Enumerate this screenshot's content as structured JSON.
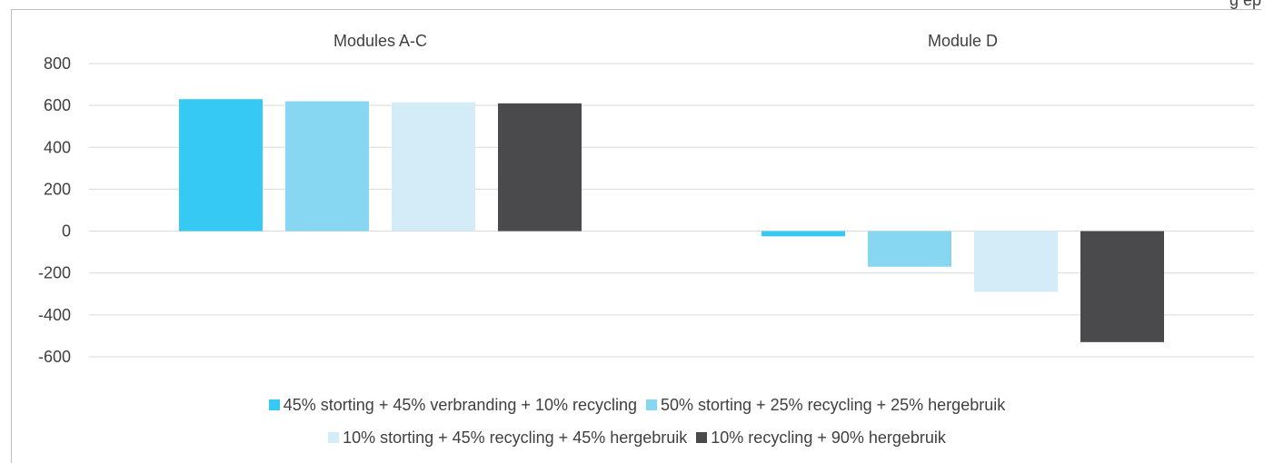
{
  "header": {
    "corner_text": "g ep"
  },
  "chart_data": {
    "type": "bar",
    "categories": [
      "Modules A-C",
      "Module D"
    ],
    "series": [
      {
        "name": "45% storting + 45% verbranding + 10% recycling",
        "color": "#35c9f4",
        "values": [
          630,
          -25
        ]
      },
      {
        "name": "50% storting + 25% recycling + 25% hergebruik",
        "color": "#87d7f3",
        "values": [
          620,
          -170
        ]
      },
      {
        "name": "10% storting + 45% recycling + 45% hergebruik",
        "color": "#d3ecf8",
        "values": [
          615,
          -290
        ]
      },
      {
        "name": "10% recycling + 90% hergebruik",
        "color": "#4a4a4c",
        "values": [
          610,
          -530
        ]
      }
    ],
    "ylim": [
      -600,
      800
    ],
    "yticks": [
      "800",
      "600",
      "400",
      "200",
      "0",
      "-200",
      "-400",
      "-600"
    ],
    "grid": true,
    "legend_position": "bottom",
    "title": "",
    "xlabel": "",
    "ylabel": ""
  }
}
